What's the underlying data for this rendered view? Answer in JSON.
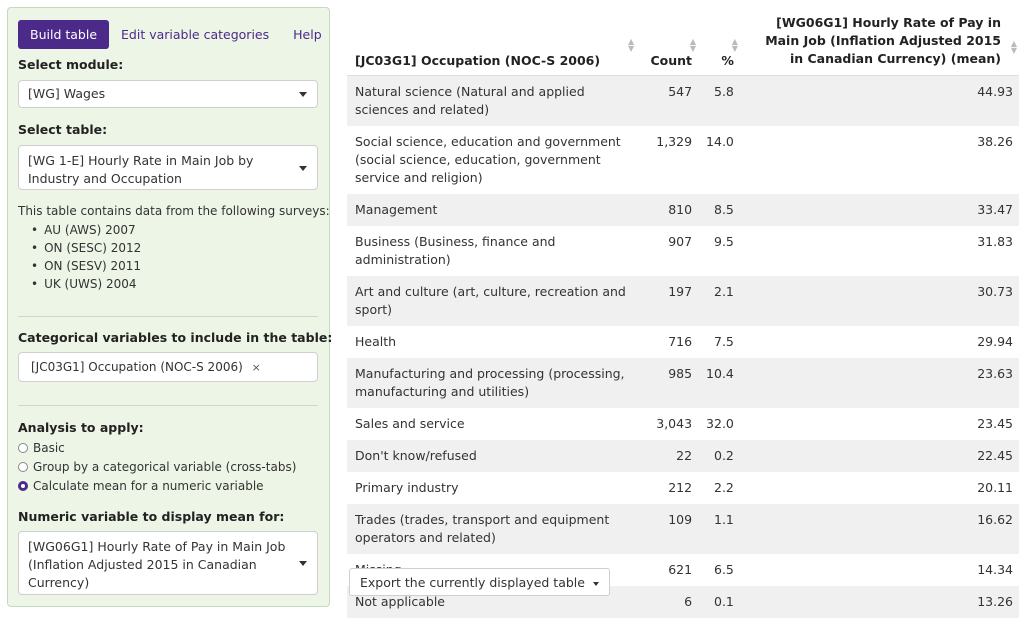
{
  "tabs": [
    "Build table",
    "Edit variable categories",
    "Help"
  ],
  "sidebar": {
    "module_label": "Select module:",
    "module_value": "[WG] Wages",
    "table_label": "Select table:",
    "table_value": "[WG 1-E] Hourly Rate in Main Job by Industry and Occupation",
    "surveys_intro": "This table contains data from the following surveys:",
    "surveys": [
      "AU (AWS) 2007",
      "ON (SESC) 2012",
      "ON (SESV) 2011",
      "UK (UWS) 2004"
    ],
    "cat_label": "Categorical variables to include in the table:",
    "cat_tag": "[JC03G1] Occupation (NOC-S 2006)",
    "cat_tag_remove": "×",
    "analysis_label": "Analysis to apply:",
    "analysis_options": [
      "Basic",
      "Group by a categorical variable (cross-tabs)",
      "Calculate mean for a numeric variable"
    ],
    "analysis_selected": 2,
    "numeric_label": "Numeric variable to display mean for:",
    "numeric_value": "[WG06G1] Hourly Rate of Pay in Main Job (Inflation Adjusted 2015 in Canadian Currency)"
  },
  "table": {
    "headers": {
      "occupation": "[JC03G1] Occupation (NOC-S 2006)",
      "count": "Count",
      "pct": "%",
      "mean": "[WG06G1] Hourly Rate of Pay in Main Job (Inflation Adjusted 2015 in Canadian Currency) (mean)"
    },
    "rows": [
      {
        "occupation": "Natural science (Natural and applied sciences and related)",
        "count": "547",
        "pct": "5.8",
        "mean": "44.93"
      },
      {
        "occupation": "Social science, education and government (social science, education, government service and religion)",
        "count": "1,329",
        "pct": "14.0",
        "mean": "38.26"
      },
      {
        "occupation": "Management",
        "count": "810",
        "pct": "8.5",
        "mean": "33.47"
      },
      {
        "occupation": "Business (Business, finance and administration)",
        "count": "907",
        "pct": "9.5",
        "mean": "31.83"
      },
      {
        "occupation": "Art and culture (art, culture, recreation and sport)",
        "count": "197",
        "pct": "2.1",
        "mean": "30.73"
      },
      {
        "occupation": "Health",
        "count": "716",
        "pct": "7.5",
        "mean": "29.94"
      },
      {
        "occupation": "Manufacturing and processing (processing, manufacturing and utilities)",
        "count": "985",
        "pct": "10.4",
        "mean": "23.63"
      },
      {
        "occupation": "Sales and service",
        "count": "3,043",
        "pct": "32.0",
        "mean": "23.45"
      },
      {
        "occupation": "Don't know/refused",
        "count": "22",
        "pct": "0.2",
        "mean": "22.45"
      },
      {
        "occupation": "Primary industry",
        "count": "212",
        "pct": "2.2",
        "mean": "20.11"
      },
      {
        "occupation": "Trades (trades, transport and equipment operators and related)",
        "count": "109",
        "pct": "1.1",
        "mean": "16.62"
      },
      {
        "occupation": "Missing",
        "count": "621",
        "pct": "6.5",
        "mean": "14.34"
      },
      {
        "occupation": "Not applicable",
        "count": "6",
        "pct": "0.1",
        "mean": "13.26"
      }
    ]
  },
  "export_label": "Export the currently displayed table",
  "icons": {
    "sort": "sort-arrows-icon",
    "dropdown": "caret-down-icon",
    "radio": "radio-icon"
  }
}
